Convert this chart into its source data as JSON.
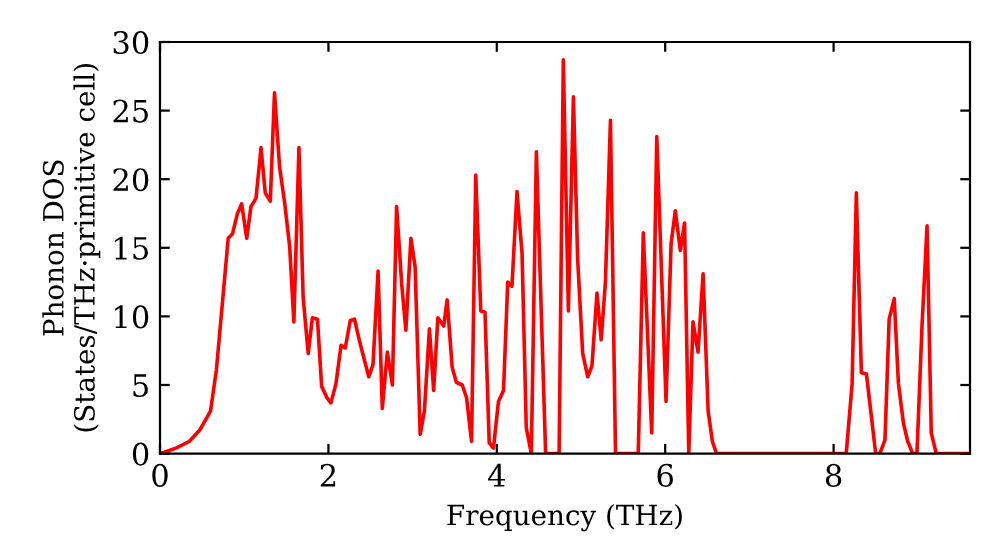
{
  "chart_data": {
    "type": "line",
    "xlabel": "Frequency (THz)",
    "ylabel": "Phonon DOS\n(States/THz·primitive cell)",
    "xlim": [
      0,
      9.62
    ],
    "ylim": [
      0,
      30
    ],
    "xticks": [
      0,
      2,
      4,
      6,
      8
    ],
    "yticks": [
      0,
      5,
      10,
      15,
      20,
      25,
      30
    ],
    "grid": false,
    "marker": "none",
    "line_style": "solid",
    "series": [
      {
        "color": "#ff0000",
        "x": [
          0,
          0.19,
          0.35,
          0.47,
          0.6,
          0.67,
          0.74,
          0.81,
          0.86,
          0.92,
          0.97,
          1.03,
          1.08,
          1.14,
          1.2,
          1.25,
          1.31,
          1.36,
          1.42,
          1.48,
          1.54,
          1.59,
          1.65,
          1.7,
          1.76,
          1.81,
          1.87,
          1.92,
          1.98,
          2.03,
          2.09,
          2.15,
          2.2,
          2.26,
          2.31,
          2.37,
          2.42,
          2.48,
          2.53,
          2.59,
          2.64,
          2.7,
          2.76,
          2.81,
          2.87,
          2.92,
          2.98,
          3.03,
          3.09,
          3.14,
          3.2,
          3.25,
          3.3,
          3.37,
          3.41,
          3.47,
          3.52,
          3.59,
          3.64,
          3.7,
          3.75,
          3.81,
          3.86,
          3.91,
          3.96,
          4.02,
          4.08,
          4.13,
          4.18,
          4.24,
          4.3,
          4.35,
          4.41,
          4.47,
          4.58,
          4.74,
          4.79,
          4.85,
          4.91,
          4.96,
          5.02,
          5.08,
          5.13,
          5.19,
          5.24,
          5.29,
          5.35,
          5.41,
          5.68,
          5.74,
          5.84,
          5.9,
          6.01,
          6.07,
          6.12,
          6.18,
          6.23,
          6.28,
          6.33,
          6.39,
          6.45,
          6.51,
          6.56,
          6.61,
          8.15,
          8.22,
          8.27,
          8.33,
          8.39,
          8.5,
          8.55,
          8.61,
          8.66,
          8.72,
          8.77,
          8.83,
          8.88,
          8.94,
          8.99,
          9.05,
          9.11,
          9.16,
          9.22,
          9.62
        ],
        "values": [
          0,
          0.4,
          0.9,
          1.7,
          3.1,
          6.1,
          10.9,
          15.7,
          16,
          17.5,
          18.2,
          15.7,
          18,
          18.6,
          22.3,
          19,
          18.4,
          26.3,
          20.9,
          18.3,
          15.1,
          9.6,
          22.3,
          11.4,
          7.3,
          9.9,
          9.8,
          4.9,
          4.1,
          3.7,
          5.1,
          7.9,
          7.7,
          9.7,
          9.8,
          8.2,
          7,
          5.6,
          6.5,
          13.3,
          3.3,
          7.4,
          5,
          18,
          12.4,
          9,
          15.7,
          13.6,
          1.4,
          3.1,
          9.1,
          4.6,
          9.9,
          9.3,
          11.2,
          6.3,
          5.2,
          5,
          4.1,
          0.9,
          20.3,
          10.4,
          10.3,
          0.8,
          0.4,
          3.8,
          4.6,
          12.5,
          12.2,
          19.1,
          14.6,
          1.9,
          0,
          22,
          0,
          0,
          28.7,
          10.4,
          26,
          14.2,
          7.3,
          5.6,
          6.4,
          11.7,
          8.3,
          12.5,
          24.3,
          0,
          0,
          16.1,
          1.5,
          23.1,
          3.8,
          15.3,
          17.7,
          14.8,
          16.8,
          0,
          9.6,
          7.4,
          13.1,
          3.1,
          0.9,
          0,
          0,
          5.1,
          19,
          5.9,
          5.8,
          0,
          0,
          1,
          9.8,
          11.3,
          5.1,
          2.2,
          0.9,
          0,
          0,
          9.3,
          16.6,
          1.5,
          0,
          0
        ]
      }
    ]
  }
}
